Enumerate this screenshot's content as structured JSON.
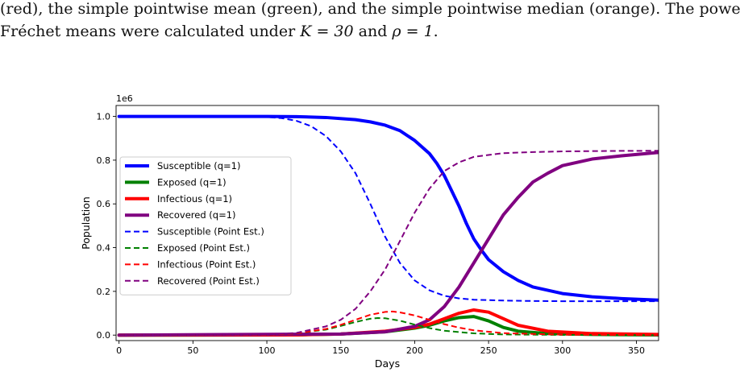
{
  "caption": {
    "line1": "(red), the simple pointwise mean (green), and the simple pointwise median (orange).  The power",
    "line2_prefix": "Fréchet means were calculated under ",
    "line2_K": "K = 30",
    "line2_and": " and ",
    "line2_rho": "ρ = 1",
    "line2_suffix": "."
  },
  "chart_data": {
    "type": "line",
    "xlabel": "Days",
    "ylabel": "Population",
    "ylim_scaled": [
      -0.025,
      1.05
    ],
    "xlim": [
      -2,
      365
    ],
    "scale_note": "1e6",
    "x_ticks": [
      0,
      50,
      100,
      150,
      200,
      250,
      300,
      350
    ],
    "x_tick_labels": [
      "0",
      "50",
      "100",
      "150",
      "200",
      "250",
      "300",
      "350"
    ],
    "y_ticks": [
      0.0,
      0.2,
      0.4,
      0.6,
      0.8,
      1.0
    ],
    "y_tick_labels": [
      "0.0",
      "0.2",
      "0.4",
      "0.6",
      "0.8",
      "1.0"
    ],
    "legend_position": "center-left",
    "series": [
      {
        "name": "Susceptible (q=1)",
        "color": "#0000ff",
        "style": "solid",
        "x": [
          0,
          100,
          120,
          140,
          160,
          170,
          180,
          190,
          200,
          210,
          215,
          220,
          225,
          230,
          235,
          240,
          245,
          250,
          260,
          270,
          280,
          300,
          320,
          340,
          365
        ],
        "y": [
          1.0,
          1.0,
          0.999,
          0.995,
          0.985,
          0.975,
          0.96,
          0.935,
          0.89,
          0.83,
          0.785,
          0.73,
          0.66,
          0.59,
          0.51,
          0.44,
          0.39,
          0.345,
          0.29,
          0.25,
          0.22,
          0.19,
          0.175,
          0.167,
          0.16
        ]
      },
      {
        "name": "Exposed (q=1)",
        "color": "#008000",
        "style": "solid",
        "x": [
          0,
          120,
          150,
          180,
          200,
          210,
          220,
          230,
          240,
          250,
          260,
          270,
          290,
          320,
          365
        ],
        "y": [
          0.0,
          0.001,
          0.005,
          0.015,
          0.032,
          0.045,
          0.065,
          0.08,
          0.085,
          0.065,
          0.035,
          0.018,
          0.007,
          0.003,
          0.001
        ]
      },
      {
        "name": "Infectious (q=1)",
        "color": "#ff0000",
        "style": "solid",
        "x": [
          0,
          120,
          150,
          180,
          200,
          210,
          220,
          230,
          240,
          250,
          260,
          270,
          290,
          320,
          365
        ],
        "y": [
          0.0,
          0.001,
          0.005,
          0.018,
          0.035,
          0.05,
          0.075,
          0.1,
          0.115,
          0.105,
          0.075,
          0.045,
          0.018,
          0.007,
          0.003
        ]
      },
      {
        "name": "Recovered (q=1)",
        "color": "#800080",
        "style": "solid",
        "x": [
          0,
          150,
          180,
          200,
          210,
          220,
          230,
          240,
          250,
          260,
          270,
          280,
          290,
          300,
          320,
          340,
          365
        ],
        "y": [
          0.0,
          0.005,
          0.015,
          0.04,
          0.07,
          0.13,
          0.22,
          0.33,
          0.44,
          0.55,
          0.63,
          0.7,
          0.74,
          0.775,
          0.805,
          0.82,
          0.835
        ]
      },
      {
        "name": "Susceptible (Point Est.)",
        "color": "#0000ff",
        "style": "dashed",
        "x": [
          0,
          100,
          110,
          120,
          130,
          140,
          150,
          160,
          170,
          180,
          190,
          200,
          210,
          220,
          230,
          240,
          260,
          280,
          300,
          330,
          365
        ],
        "y": [
          1.0,
          0.997,
          0.992,
          0.98,
          0.955,
          0.91,
          0.84,
          0.74,
          0.6,
          0.45,
          0.33,
          0.25,
          0.205,
          0.18,
          0.168,
          0.162,
          0.158,
          0.156,
          0.155,
          0.155,
          0.155
        ]
      },
      {
        "name": "Exposed (Point Est.)",
        "color": "#008000",
        "style": "dashed",
        "x": [
          0,
          100,
          120,
          140,
          150,
          160,
          170,
          175,
          180,
          190,
          200,
          210,
          220,
          240,
          260,
          300,
          365
        ],
        "y": [
          0.0,
          0.001,
          0.008,
          0.025,
          0.042,
          0.06,
          0.075,
          0.078,
          0.077,
          0.066,
          0.048,
          0.032,
          0.02,
          0.008,
          0.003,
          0.001,
          0.0
        ]
      },
      {
        "name": "Infectious (Point Est.)",
        "color": "#ff0000",
        "style": "dashed",
        "x": [
          0,
          100,
          120,
          140,
          150,
          160,
          170,
          180,
          185,
          190,
          200,
          210,
          220,
          230,
          240,
          260,
          300,
          365
        ],
        "y": [
          0.0,
          0.001,
          0.008,
          0.028,
          0.047,
          0.07,
          0.093,
          0.106,
          0.108,
          0.104,
          0.09,
          0.07,
          0.05,
          0.034,
          0.022,
          0.009,
          0.002,
          0.0
        ]
      },
      {
        "name": "Recovered (Point Est.)",
        "color": "#800080",
        "style": "dashed",
        "x": [
          0,
          100,
          120,
          140,
          150,
          160,
          170,
          180,
          190,
          200,
          210,
          220,
          230,
          240,
          260,
          280,
          300,
          330,
          365
        ],
        "y": [
          0.0,
          0.002,
          0.01,
          0.04,
          0.07,
          0.12,
          0.2,
          0.3,
          0.43,
          0.56,
          0.67,
          0.75,
          0.79,
          0.815,
          0.832,
          0.837,
          0.84,
          0.842,
          0.843
        ]
      }
    ]
  }
}
